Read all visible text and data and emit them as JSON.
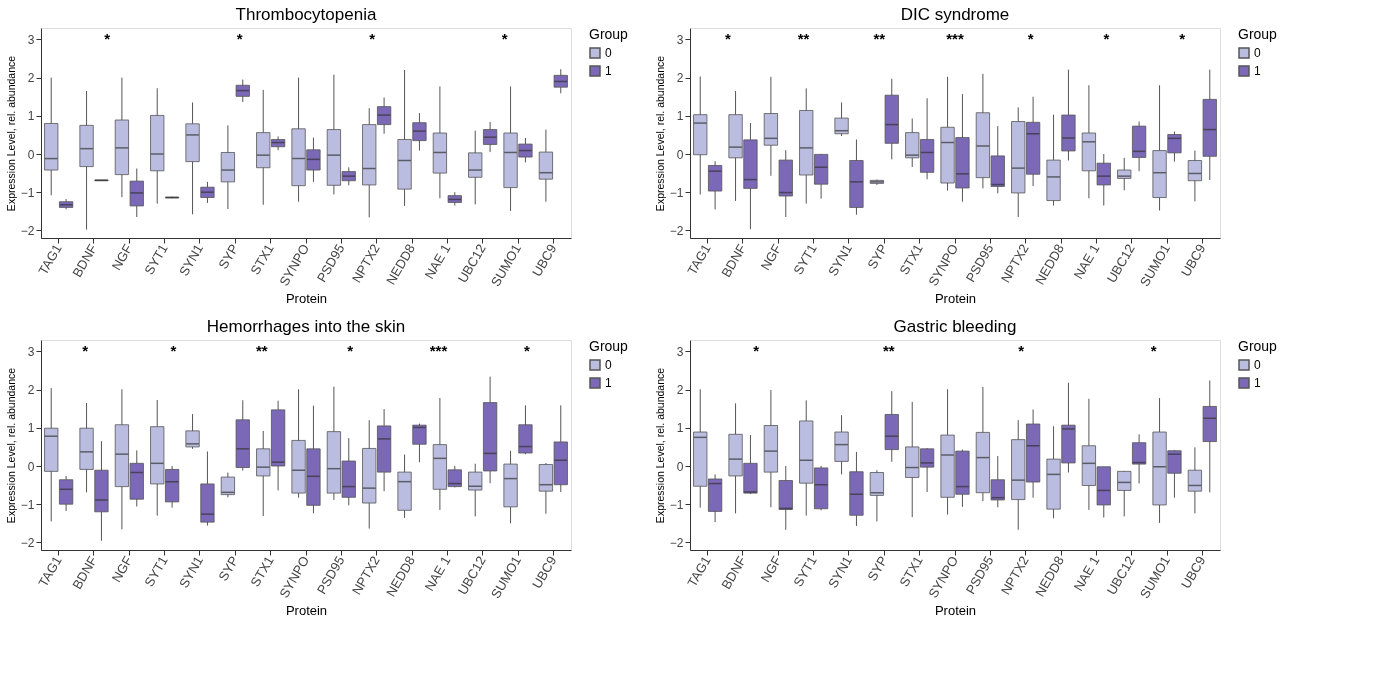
{
  "chart_data": [
    {
      "type": "box",
      "title": "Thrombocytopenia",
      "xlabel": "Protein",
      "ylabel": "Expression Level, rel. abundance",
      "legend_title": "Group",
      "legend": "right",
      "categories": [
        "TAG1",
        "BDNF",
        "NGF",
        "SYT1",
        "SYN1",
        "SYP",
        "STX1",
        "SYNPO",
        "PSD95",
        "NPTX2",
        "NEDD8",
        "NAE 1",
        "UBC12",
        "SUMO1",
        "UBC9"
      ],
      "ylim": [
        -2.2,
        3.3
      ],
      "yticks": [
        -2,
        -1,
        0,
        1,
        2,
        3
      ],
      "series": [
        {
          "name": "0",
          "color": "#bbbde0",
          "boxes": [
            {
              "low": -1.08,
              "q1": -0.42,
              "median": -0.12,
              "q3": 0.8,
              "high": 2.0
            },
            {
              "low": -1.98,
              "q1": -0.33,
              "median": 0.14,
              "q3": 0.75,
              "high": 1.65
            },
            {
              "low": -1.13,
              "q1": -0.54,
              "median": 0.16,
              "q3": 0.89,
              "high": 2.0
            },
            {
              "low": -1.3,
              "q1": -0.44,
              "median": 0.0,
              "q3": 1.01,
              "high": 1.72
            },
            {
              "low": -1.58,
              "q1": -0.2,
              "median": 0.5,
              "q3": 0.79,
              "high": 1.35
            },
            {
              "low": -1.44,
              "q1": -0.73,
              "median": -0.42,
              "q3": 0.04,
              "high": 0.75
            },
            {
              "low": -1.33,
              "q1": -0.36,
              "median": -0.03,
              "q3": 0.56,
              "high": 1.68
            },
            {
              "low": -1.25,
              "q1": -0.83,
              "median": -0.12,
              "q3": 0.66,
              "high": 2.0
            },
            {
              "low": -1.06,
              "q1": -0.82,
              "median": -0.03,
              "q3": 0.64,
              "high": 2.08
            },
            {
              "low": -1.66,
              "q1": -0.81,
              "median": -0.38,
              "q3": 0.77,
              "high": 1.2
            },
            {
              "low": -1.36,
              "q1": -0.92,
              "median": -0.17,
              "q3": 0.38,
              "high": 2.2
            },
            {
              "low": -1.16,
              "q1": -0.5,
              "median": 0.04,
              "q3": 0.55,
              "high": 1.77
            },
            {
              "low": -1.32,
              "q1": -0.61,
              "median": -0.42,
              "q3": 0.03,
              "high": 0.61
            },
            {
              "low": -1.49,
              "q1": -0.88,
              "median": 0.04,
              "q3": 0.55,
              "high": 1.77
            },
            {
              "low": -1.25,
              "q1": -0.66,
              "median": -0.49,
              "q3": 0.05,
              "high": 0.64
            }
          ]
        },
        {
          "name": "1",
          "color": "#7b68b6",
          "boxes": [
            {
              "low": -1.45,
              "q1": -1.4,
              "median": -1.33,
              "q3": -1.25,
              "high": -1.18
            },
            {
              "low": -0.7,
              "q1": -0.7,
              "median": -0.69,
              "q3": -0.68,
              "high": -0.68
            },
            {
              "low": -1.65,
              "q1": -1.36,
              "median": -1.02,
              "q3": -0.71,
              "high": -0.38
            },
            {
              "low": -1.16,
              "q1": -1.15,
              "median": -1.14,
              "q3": -1.13,
              "high": -1.12
            },
            {
              "low": -1.28,
              "q1": -1.14,
              "median": -1.0,
              "q3": -0.87,
              "high": -0.73
            },
            {
              "low": 1.36,
              "q1": 1.51,
              "median": 1.66,
              "q3": 1.8,
              "high": 1.95
            },
            {
              "low": 0.1,
              "q1": 0.19,
              "median": 0.3,
              "q3": 0.38,
              "high": 0.46
            },
            {
              "low": -0.73,
              "q1": -0.42,
              "median": -0.14,
              "q3": 0.11,
              "high": 0.43
            },
            {
              "low": -0.82,
              "q1": -0.7,
              "median": -0.58,
              "q3": -0.46,
              "high": -0.35
            },
            {
              "low": 0.53,
              "q1": 0.77,
              "median": 1.02,
              "q3": 1.24,
              "high": 1.48
            },
            {
              "low": 0.09,
              "q1": 0.35,
              "median": 0.6,
              "q3": 0.82,
              "high": 1.07
            },
            {
              "low": -1.35,
              "q1": -1.27,
              "median": -1.19,
              "q3": -1.09,
              "high": -1.0
            },
            {
              "low": 0.05,
              "q1": 0.25,
              "median": 0.44,
              "q3": 0.64,
              "high": 0.84
            },
            {
              "low": -0.22,
              "q1": -0.08,
              "median": 0.09,
              "q3": 0.26,
              "high": 0.42
            },
            {
              "low": 1.59,
              "q1": 1.75,
              "median": 1.9,
              "q3": 2.06,
              "high": 2.22
            }
          ]
        }
      ],
      "annotations": [
        "*",
        "*",
        "*",
        "*"
      ]
    },
    {
      "type": "box",
      "title": "DIC syndrome",
      "xlabel": "Protein",
      "ylabel": "Expression Level, rel. abundance",
      "legend_title": "Group",
      "legend": "right",
      "categories": [
        "TAG1",
        "BDNF",
        "NGF",
        "SYT1",
        "SYN1",
        "SYP",
        "STX1",
        "SYNPO",
        "PSD95",
        "NPTX2",
        "NEDD8",
        "NAE 1",
        "UBC12",
        "SUMO1",
        "UBC9"
      ],
      "ylim": [
        -2.2,
        3.3
      ],
      "yticks": [
        -2,
        -1,
        0,
        1,
        2,
        3
      ],
      "series": [
        {
          "name": "0",
          "color": "#bbbde0",
          "boxes": [
            {
              "low": -1.06,
              "q1": -0.02,
              "median": 0.81,
              "q3": 1.03,
              "high": 2.03
            },
            {
              "low": -1.23,
              "q1": -0.1,
              "median": 0.18,
              "q3": 1.03,
              "high": 1.65
            },
            {
              "low": -0.57,
              "q1": 0.23,
              "median": 0.41,
              "q3": 1.06,
              "high": 2.02
            },
            {
              "low": -1.3,
              "q1": -0.55,
              "median": 0.16,
              "q3": 1.14,
              "high": 1.72
            },
            {
              "low": 0.47,
              "q1": 0.53,
              "median": 0.61,
              "q3": 0.94,
              "high": 1.35
            },
            {
              "low": -0.81,
              "q1": -0.77,
              "median": -0.73,
              "q3": -0.69,
              "high": -0.67
            },
            {
              "low": -0.34,
              "q1": -0.1,
              "median": -0.03,
              "q3": 0.56,
              "high": 0.93
            },
            {
              "low": -0.96,
              "q1": -0.76,
              "median": 0.3,
              "q3": 0.7,
              "high": 2.02
            },
            {
              "low": -0.9,
              "q1": -0.62,
              "median": 0.21,
              "q3": 1.08,
              "high": 2.1
            },
            {
              "low": -1.65,
              "q1": -1.02,
              "median": -0.37,
              "q3": 0.85,
              "high": 1.22
            },
            {
              "low": -1.35,
              "q1": -1.22,
              "median": -0.6,
              "q3": -0.16,
              "high": 1.03
            },
            {
              "low": -1.16,
              "q1": -0.44,
              "median": 0.32,
              "q3": 0.55,
              "high": 1.8
            },
            {
              "low": -0.95,
              "q1": -0.64,
              "median": -0.58,
              "q3": -0.42,
              "high": -0.1
            },
            {
              "low": -1.48,
              "q1": -1.14,
              "median": -0.49,
              "q3": 0.09,
              "high": 1.8
            },
            {
              "low": -1.24,
              "q1": -0.7,
              "median": -0.51,
              "q3": -0.17,
              "high": 0.09
            }
          ]
        },
        {
          "name": "1",
          "color": "#7b68b6",
          "boxes": [
            {
              "low": -1.45,
              "q1": -0.97,
              "median": -0.45,
              "q3": -0.3,
              "high": -0.19
            },
            {
              "low": -1.97,
              "q1": -0.9,
              "median": -0.67,
              "q3": 0.37,
              "high": 0.81
            },
            {
              "low": -1.65,
              "q1": -1.1,
              "median": -1.01,
              "q3": -0.16,
              "high": 0.1
            },
            {
              "low": -1.17,
              "q1": -0.79,
              "median": -0.35,
              "q3": -0.01,
              "high": 0.0
            },
            {
              "low": -1.59,
              "q1": -1.4,
              "median": -0.73,
              "q3": -0.17,
              "high": 0.38
            },
            {
              "low": -0.14,
              "q1": 0.28,
              "median": 0.77,
              "q3": 1.54,
              "high": 1.97
            },
            {
              "low": -0.66,
              "q1": -0.48,
              "median": 0.04,
              "q3": 0.38,
              "high": 1.46
            },
            {
              "low": -1.25,
              "q1": -0.89,
              "median": -0.52,
              "q3": 0.43,
              "high": 1.57
            },
            {
              "low": -1.03,
              "q1": -0.85,
              "median": -0.8,
              "q3": -0.05,
              "high": 0.73
            },
            {
              "low": -0.84,
              "q1": -0.53,
              "median": 0.53,
              "q3": 0.83,
              "high": 1.5
            },
            {
              "low": -0.17,
              "q1": 0.08,
              "median": 0.42,
              "q3": 1.02,
              "high": 2.21
            },
            {
              "low": -1.35,
              "q1": -0.81,
              "median": -0.58,
              "q3": -0.24,
              "high": 0.0
            },
            {
              "low": -0.45,
              "q1": -0.09,
              "median": 0.07,
              "q3": 0.73,
              "high": 0.85
            },
            {
              "low": -0.2,
              "q1": 0.03,
              "median": 0.41,
              "q3": 0.51,
              "high": 0.59
            },
            {
              "low": -0.68,
              "q1": -0.06,
              "median": 0.64,
              "q3": 1.43,
              "high": 2.21
            }
          ]
        }
      ],
      "annotations": [
        "*",
        "**",
        "**",
        "***",
        "*",
        "*",
        "*"
      ]
    },
    {
      "type": "box",
      "title": "Hemorrhages into the skin",
      "xlabel": "Protein",
      "ylabel": "Expression Level, rel. abundance",
      "legend_title": "Group",
      "legend": "right",
      "categories": [
        "TAG1",
        "BDNF",
        "NGF",
        "SYT1",
        "SYN1",
        "SYP",
        "STX1",
        "SYNPO",
        "PSD95",
        "NPTX2",
        "NEDD8",
        "NAE 1",
        "UBC12",
        "SUMO1",
        "UBC9"
      ],
      "ylim": [
        -2.2,
        3.3
      ],
      "yticks": [
        -2,
        -1,
        0,
        1,
        2,
        3
      ],
      "series": [
        {
          "name": "0",
          "color": "#bbbde0",
          "boxes": [
            {
              "low": -1.45,
              "q1": -0.14,
              "median": 0.78,
              "q3": 0.99,
              "high": 2.04
            },
            {
              "low": -0.69,
              "q1": -0.09,
              "median": 0.37,
              "q3": 0.99,
              "high": 1.65
            },
            {
              "low": -1.66,
              "q1": -0.54,
              "median": 0.31,
              "q3": 1.08,
              "high": 2.01
            },
            {
              "low": -1.3,
              "q1": -0.47,
              "median": 0.07,
              "q3": 1.03,
              "high": 1.73
            },
            {
              "low": 0.45,
              "q1": 0.5,
              "median": 0.58,
              "q3": 0.92,
              "high": 1.36
            },
            {
              "low": -0.82,
              "q1": -0.75,
              "median": -0.69,
              "q3": -0.29,
              "high": -0.17
            },
            {
              "low": -1.31,
              "q1": -0.26,
              "median": -0.03,
              "q3": 0.45,
              "high": 0.92
            },
            {
              "low": -0.83,
              "q1": -0.71,
              "median": -0.11,
              "q3": 0.67,
              "high": 2.01
            },
            {
              "low": -0.89,
              "q1": -0.71,
              "median": -0.07,
              "q3": 0.9,
              "high": 2.08
            },
            {
              "low": -1.64,
              "q1": -0.97,
              "median": -0.58,
              "q3": 0.46,
              "high": 1.2
            },
            {
              "low": -1.36,
              "q1": -1.16,
              "median": -0.41,
              "q3": -0.16,
              "high": 0.3
            },
            {
              "low": -1.15,
              "q1": -0.61,
              "median": 0.2,
              "q3": 0.56,
              "high": 1.78
            },
            {
              "low": -1.32,
              "q1": -0.63,
              "median": -0.53,
              "q3": -0.16,
              "high": 0.06
            },
            {
              "low": -1.5,
              "q1": -1.07,
              "median": -0.33,
              "q3": 0.05,
              "high": 0.4
            },
            {
              "low": -1.25,
              "q1": -0.66,
              "median": -0.49,
              "q3": 0.04,
              "high": 0.08
            }
          ]
        },
        {
          "name": "1",
          "color": "#7b68b6",
          "boxes": [
            {
              "low": -1.18,
              "q1": -1.0,
              "median": -0.61,
              "q3": -0.36,
              "high": -0.26
            },
            {
              "low": -1.96,
              "q1": -1.2,
              "median": -0.89,
              "q3": -0.11,
              "high": 0.65
            },
            {
              "low": -1.06,
              "q1": -0.87,
              "median": -0.17,
              "q3": 0.07,
              "high": 0.41
            },
            {
              "low": -1.09,
              "q1": -0.94,
              "median": -0.41,
              "q3": -0.09,
              "high": 0.0
            },
            {
              "low": -1.56,
              "q1": -1.47,
              "median": -1.26,
              "q3": -0.47,
              "high": 0.38
            },
            {
              "low": -0.12,
              "q1": -0.04,
              "median": 0.45,
              "q3": 1.21,
              "high": 1.72
            },
            {
              "low": -0.64,
              "q1": 0.0,
              "median": 0.1,
              "q3": 1.47,
              "high": 1.71
            },
            {
              "low": -1.24,
              "q1": -1.03,
              "median": -0.27,
              "q3": 0.45,
              "high": 1.58
            },
            {
              "low": -1.03,
              "q1": -0.82,
              "median": -0.54,
              "q3": 0.13,
              "high": 0.73
            },
            {
              "low": -0.66,
              "q1": -0.16,
              "median": 0.71,
              "q3": 1.05,
              "high": 1.49
            },
            {
              "low": 0.1,
              "q1": 0.57,
              "median": 1.01,
              "q3": 1.07,
              "high": 1.11
            },
            {
              "low": -0.56,
              "q1": -0.54,
              "median": -0.46,
              "q3": -0.1,
              "high": 0.0
            },
            {
              "low": -0.45,
              "q1": -0.13,
              "median": 0.33,
              "q3": 1.66,
              "high": 2.34
            },
            {
              "low": 0.31,
              "q1": 0.34,
              "median": 0.51,
              "q3": 1.08,
              "high": 1.59
            },
            {
              "low": -0.68,
              "q1": -0.49,
              "median": 0.15,
              "q3": 0.63,
              "high": 1.59
            }
          ]
        }
      ],
      "annotations": [
        "*",
        "*",
        "**",
        "*",
        "***",
        "*"
      ]
    },
    {
      "type": "box",
      "title": "Gastric bleeding",
      "xlabel": "Protein",
      "ylabel": "Expression Level, rel. abundance",
      "legend_title": "Group",
      "legend": "right",
      "categories": [
        "TAG1",
        "BDNF",
        "NGF",
        "SYT1",
        "SYN1",
        "SYP",
        "STX1",
        "SYNPO",
        "PSD95",
        "NPTX2",
        "NEDD8",
        "NAE 1",
        "UBC12",
        "SUMO1",
        "UBC9"
      ],
      "ylim": [
        -2.2,
        3.3
      ],
      "yticks": [
        -2,
        -1,
        0,
        1,
        2,
        3
      ],
      "series": [
        {
          "name": "0",
          "color": "#bbbde0",
          "boxes": [
            {
              "low": -1.09,
              "q1": -0.53,
              "median": 0.75,
              "q3": 0.89,
              "high": 2.01
            },
            {
              "low": -1.24,
              "q1": -0.26,
              "median": 0.18,
              "q3": 0.83,
              "high": 1.64
            },
            {
              "low": -1.08,
              "q1": -0.16,
              "median": 0.39,
              "q3": 1.06,
              "high": 1.99
            },
            {
              "low": -1.3,
              "q1": -0.45,
              "median": 0.15,
              "q3": 1.18,
              "high": 1.72
            },
            {
              "low": -0.22,
              "q1": 0.12,
              "median": 0.56,
              "q3": 0.89,
              "high": 1.33
            },
            {
              "low": -1.45,
              "q1": -0.77,
              "median": -0.7,
              "q3": -0.17,
              "high": -0.11
            },
            {
              "low": -1.34,
              "q1": -0.3,
              "median": -0.04,
              "q3": 0.5,
              "high": 1.68
            },
            {
              "low": -1.27,
              "q1": -0.82,
              "median": 0.29,
              "q3": 0.81,
              "high": 2.01
            },
            {
              "low": -0.92,
              "q1": -0.7,
              "median": 0.22,
              "q3": 0.88,
              "high": 2.07
            },
            {
              "low": -1.67,
              "q1": -0.88,
              "median": -0.37,
              "q3": 0.69,
              "high": 1.2
            },
            {
              "low": -1.37,
              "q1": -1.13,
              "median": -0.22,
              "q3": 0.18,
              "high": 1.04
            },
            {
              "low": -1.15,
              "q1": -0.51,
              "median": 0.07,
              "q3": 0.53,
              "high": 1.76
            },
            {
              "low": -1.32,
              "q1": -0.64,
              "median": -0.43,
              "q3": -0.14,
              "high": -0.13
            },
            {
              "low": -1.49,
              "q1": -1.02,
              "median": -0.02,
              "q3": 0.89,
              "high": 1.78
            },
            {
              "low": -1.24,
              "q1": -0.66,
              "median": -0.51,
              "q3": -0.11,
              "high": 0.49
            }
          ]
        },
        {
          "name": "1",
          "color": "#7b68b6",
          "boxes": [
            {
              "low": -1.47,
              "q1": -1.19,
              "median": -0.46,
              "q3": -0.34,
              "high": -0.22
            },
            {
              "low": -0.73,
              "q1": -0.71,
              "median": -0.68,
              "q3": 0.07,
              "high": 0.81
            },
            {
              "low": -1.67,
              "q1": -1.14,
              "median": -1.11,
              "q3": -0.38,
              "high": 0.0
            },
            {
              "low": -1.16,
              "q1": -1.12,
              "median": -0.49,
              "q3": -0.05,
              "high": 0.0
            },
            {
              "low": -1.57,
              "q1": -1.29,
              "median": -0.74,
              "q3": -0.15,
              "high": 0.37
            },
            {
              "low": 0.11,
              "q1": 0.43,
              "median": 0.78,
              "q3": 1.35,
              "high": 1.96
            },
            {
              "low": -0.68,
              "q1": -0.03,
              "median": 0.08,
              "q3": 0.45,
              "high": 0.47
            },
            {
              "low": -1.07,
              "q1": -0.74,
              "median": -0.54,
              "q3": 0.39,
              "high": 0.43
            },
            {
              "low": -1.08,
              "q1": -0.89,
              "median": -0.83,
              "q3": -0.36,
              "high": 0.26
            },
            {
              "low": -0.83,
              "q1": -0.42,
              "median": 0.53,
              "q3": 1.1,
              "high": 1.48
            },
            {
              "low": -0.17,
              "q1": 0.08,
              "median": 0.97,
              "q3": 1.07,
              "high": 2.18
            },
            {
              "low": -1.35,
              "q1": -1.02,
              "median": -0.64,
              "q3": -0.02,
              "high": -0.02
            },
            {
              "low": -0.46,
              "q1": 0.05,
              "median": 0.09,
              "q3": 0.61,
              "high": 0.83
            },
            {
              "low": -0.83,
              "q1": -0.19,
              "median": 0.31,
              "q3": 0.4,
              "high": 0.42
            },
            {
              "low": -0.69,
              "q1": 0.64,
              "median": 1.25,
              "q3": 1.56,
              "high": 2.24
            }
          ]
        }
      ],
      "annotations": [
        "*",
        "**",
        "*",
        "*"
      ]
    }
  ]
}
